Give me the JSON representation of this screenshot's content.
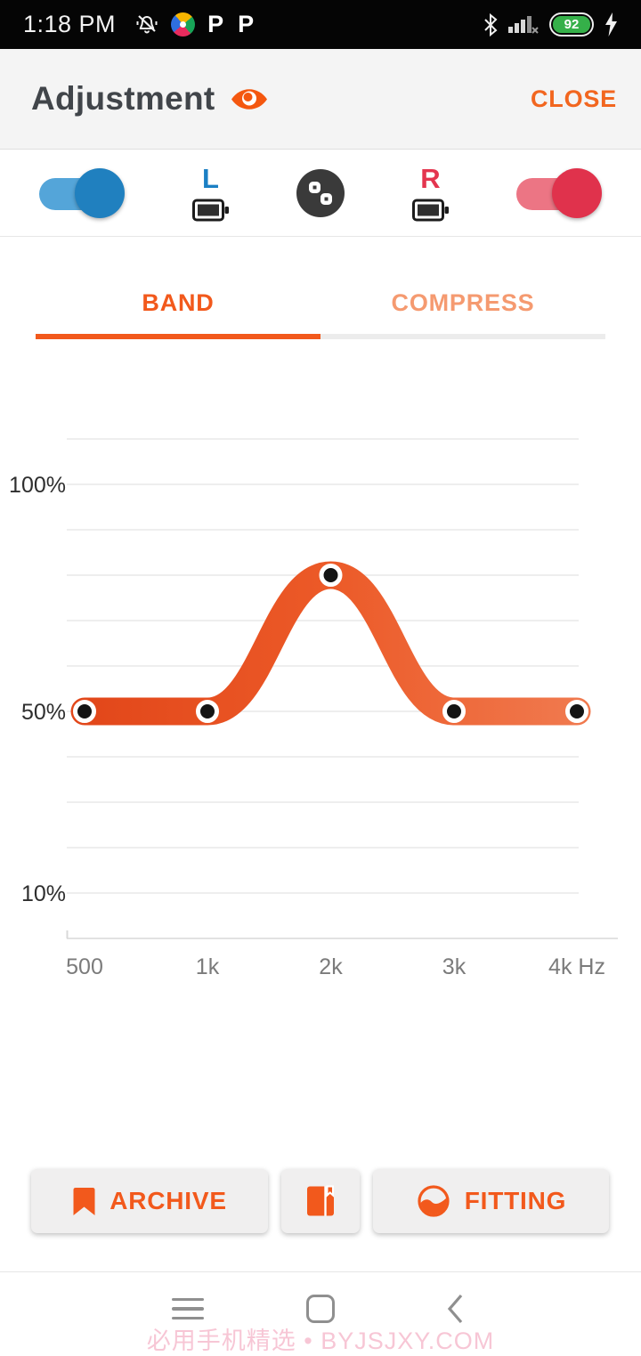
{
  "status_bar": {
    "time": "1:18 PM",
    "notification_letters": [
      "P",
      "P"
    ],
    "battery_percent": "92"
  },
  "header": {
    "title": "Adjustment",
    "close_label": "CLOSE"
  },
  "device_row": {
    "left_label": "L",
    "right_label": "R",
    "left_toggle_on": true,
    "right_toggle_on": true
  },
  "tabs": [
    {
      "label": "BAND",
      "active": true
    },
    {
      "label": "COMPRESS",
      "active": false
    }
  ],
  "chart_data": {
    "type": "line",
    "title": "",
    "xlabel": "Hz",
    "ylabel": "%",
    "x_labels": [
      "500",
      "1k",
      "2k",
      "3k",
      "4k Hz"
    ],
    "x_values_hz": [
      500,
      1000,
      2000,
      3000,
      4000
    ],
    "series": [
      {
        "name": "band_gain",
        "values_percent": [
          50,
          50,
          80,
          50,
          50
        ]
      }
    ],
    "y_ticks": [
      {
        "label": "100%",
        "percent": 100
      },
      {
        "label": "50%",
        "percent": 50
      },
      {
        "label": "10%",
        "percent": 10
      }
    ],
    "grid": true,
    "gridline_count": 12,
    "top_gridline_percent": 110,
    "percent_per_gridline": 10,
    "band_gradient_start": "#E2471A",
    "band_gradient_mid": "#EC5A28",
    "band_gradient_end": "#F0794E",
    "point_color": "#141414",
    "point_ring_color": "#ffffff"
  },
  "actions": {
    "archive": {
      "label": "ARCHIVE"
    },
    "fitting": {
      "label": "FITTING"
    }
  },
  "watermark": "必用手机精选 • BYJSJXY.COM",
  "colors": {
    "accent_orange": "#F2591C",
    "inactive_tab_orange": "#F59A70",
    "left_ear_blue": "#1B7FC4",
    "right_ear_red": "#E4354F",
    "status_bar_bg": "#050505",
    "header_bg": "#F4F4F4",
    "battery_green": "#35B049"
  }
}
